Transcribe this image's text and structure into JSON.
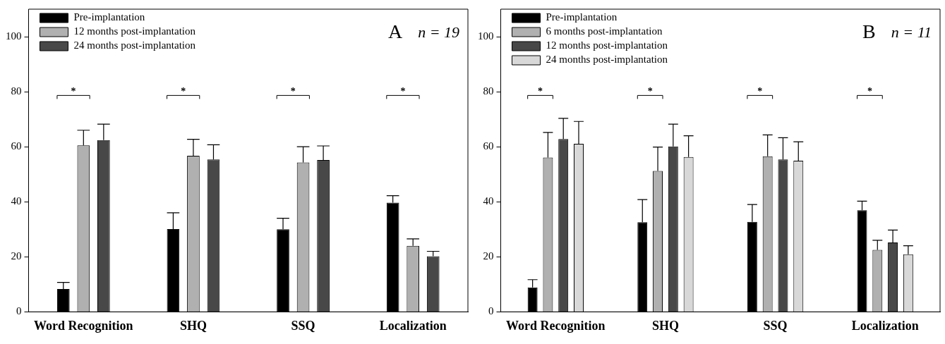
{
  "chart_data": [
    {
      "type": "bar",
      "categories": [
        "Word Recognition",
        "SHQ",
        "SSQ",
        "Localization"
      ],
      "ylim": [
        0,
        110
      ],
      "yticks": [
        0,
        20,
        40,
        60,
        80,
        100
      ],
      "grid": false,
      "legend": "top left",
      "series": [
        {
          "name": "Pre-implantation",
          "color": "#000000",
          "values": [
            8.3,
            30.1,
            30,
            39.7
          ],
          "errors": [
            [
              8.3,
              10.7
            ],
            [
              30.1,
              36
            ],
            [
              30,
              34
            ],
            [
              39.7,
              42.2
            ]
          ]
        },
        {
          "name": "12 months post-implantation",
          "color": "#b0b0b0",
          "values": [
            60.5,
            56.7,
            54.3,
            24
          ],
          "errors": [
            [
              60.5,
              66
            ],
            [
              56.7,
              62.7
            ],
            [
              54.3,
              60
            ],
            [
              24,
              26.5
            ]
          ]
        },
        {
          "name": "24 months post-implantation",
          "color": "#484848",
          "values": [
            62.4,
            55.4,
            55.2,
            20.2
          ],
          "errors": [
            [
              62.4,
              68.2
            ],
            [
              55.4,
              60.7
            ],
            [
              55.2,
              60.3
            ],
            [
              20.2,
              22
            ]
          ]
        }
      ],
      "annotations": [
        "A",
        "n = 19",
        "*",
        "*",
        "*",
        "*"
      ]
    },
    {
      "type": "bar",
      "categories": [
        "Word Recognition",
        "SHQ",
        "SSQ",
        "Localization"
      ],
      "ylim": [
        0,
        110
      ],
      "yticks": [
        0,
        20,
        40,
        60,
        80,
        100
      ],
      "grid": false,
      "legend": "top left",
      "series": [
        {
          "name": "Pre-implantation",
          "color": "#000000",
          "values": [
            8.9,
            32.6,
            32.7,
            36.9
          ],
          "errors": [
            [
              8.9,
              11.7
            ],
            [
              32.6,
              40.8
            ],
            [
              32.7,
              39
            ],
            [
              36.9,
              40.2
            ]
          ]
        },
        {
          "name": "6 months post-implantation",
          "color": "#b0b0b0",
          "values": [
            56.1,
            51.2,
            56.5,
            22.5
          ],
          "errors": [
            [
              56.1,
              65.2
            ],
            [
              51.2,
              59.9
            ],
            [
              56.5,
              64.3
            ],
            [
              22.5,
              26
            ]
          ]
        },
        {
          "name": "12 months post-implantation",
          "color": "#484848",
          "values": [
            62.8,
            60.1,
            55.4,
            25.2
          ],
          "errors": [
            [
              62.8,
              70.3
            ],
            [
              60.1,
              68.2
            ],
            [
              55.4,
              63.3
            ],
            [
              25.2,
              29.7
            ]
          ]
        },
        {
          "name": "24 months post-implantation",
          "color": "#d8d8d8",
          "values": [
            61.1,
            56.3,
            54.9,
            20.9
          ],
          "errors": [
            [
              61.1,
              69.2
            ],
            [
              56.3,
              64
            ],
            [
              54.9,
              61.8
            ],
            [
              20.9,
              24
            ]
          ]
        }
      ],
      "annotations": [
        "B",
        "n = 11",
        "*",
        "*",
        "*",
        "*"
      ]
    }
  ]
}
